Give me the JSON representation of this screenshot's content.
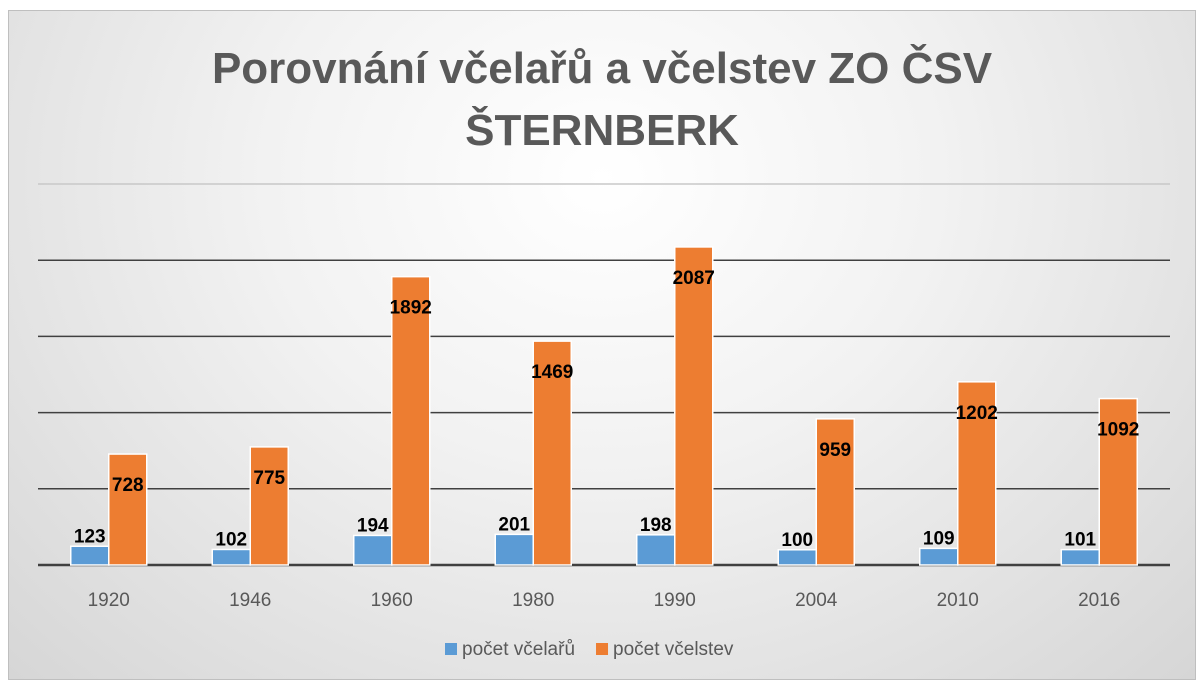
{
  "chart_data": {
    "type": "bar",
    "title": "Porovnání včelařů a včelstev ZO ČSV ŠTERNBERK",
    "categories": [
      "1920",
      "1946",
      "1960",
      "1980",
      "1990",
      "2004",
      "2010",
      "2016"
    ],
    "series": [
      {
        "name": "počet včelařů",
        "color": "#5b9bd5",
        "values": [
          123,
          102,
          194,
          201,
          198,
          100,
          109,
          101
        ]
      },
      {
        "name": "počet včelstev",
        "color": "#ed7d31",
        "values": [
          728,
          775,
          1892,
          1469,
          2087,
          959,
          1202,
          1092
        ]
      }
    ],
    "ylim": [
      0,
      2500
    ],
    "yticks": [
      0,
      500,
      1000,
      1500,
      2000,
      2500
    ],
    "grid": true,
    "legend": "bottom"
  }
}
